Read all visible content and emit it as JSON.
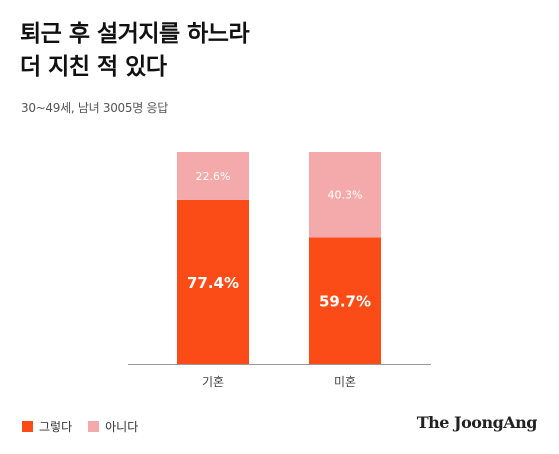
{
  "title_line1": "퇴근 후 설거지를 하느라",
  "title_line2": "더 지친 적 있다",
  "subtitle": "30~49세, 남녀 3005명 응답",
  "logo_text": "The JoongAng",
  "colors": {
    "yes": "#FB4C17",
    "no": "#F4AAAA"
  },
  "chart_data": {
    "type": "bar",
    "stacked": true,
    "categories": [
      "기혼",
      "미혼"
    ],
    "series": [
      {
        "name": "그렇다",
        "values": [
          77.4,
          59.7
        ],
        "labels": [
          "77.4%",
          "59.7%"
        ]
      },
      {
        "name": "아니다",
        "values": [
          22.6,
          40.3
        ],
        "labels": [
          "22.6%",
          "40.3%"
        ]
      }
    ],
    "title": "퇴근 후 설거지를 하느라 더 지친 적 있다",
    "xlabel": "",
    "ylabel": "",
    "ylim": [
      0,
      100
    ],
    "grid": false,
    "legend": "bottom-left"
  }
}
